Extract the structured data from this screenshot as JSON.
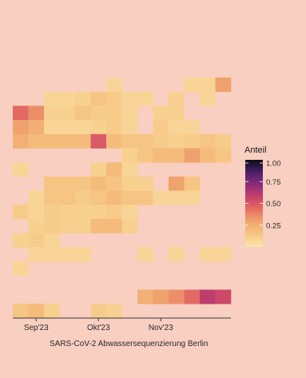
{
  "chart_data": {
    "type": "heatmap",
    "title": "",
    "xlabel": "SARS-CoV-2 Abwassersequenzierung Berlin",
    "ylabel": "",
    "x_ticks": [
      "Sep'23",
      "Okt'23",
      "Nov'23"
    ],
    "x_tick_week_index": [
      1,
      5,
      9
    ],
    "weeks": 14,
    "rows": 17,
    "legend": {
      "title": "Anteil",
      "ticks": [
        "1.00",
        "0.75",
        "0.50",
        "0.25"
      ],
      "tick_values": [
        1.0,
        0.75,
        0.5,
        0.25
      ],
      "range": [
        0,
        1
      ],
      "position": "right"
    },
    "colors": {
      "background": "#f8cfc0",
      "colorscale": [
        "#fbe6ad",
        "#f6c784",
        "#f0a86e",
        "#e87062",
        "#c9416b",
        "#8e2b7a",
        "#4a1f6b",
        "#0b0b18"
      ]
    },
    "cells": [
      [
        [
          6,
          0.08
        ],
        [
          11,
          0.08
        ],
        [
          12,
          0.08
        ],
        [
          13,
          0.3
        ]
      ],
      [
        [
          2,
          0.08
        ],
        [
          3,
          0.08
        ],
        [
          4,
          0.1
        ],
        [
          5,
          0.15
        ],
        [
          6,
          0.12
        ],
        [
          7,
          0.08
        ],
        [
          8,
          0.08
        ],
        [
          10,
          0.1
        ],
        [
          12,
          0.08
        ]
      ],
      [
        [
          0,
          0.45
        ],
        [
          1,
          0.35
        ],
        [
          2,
          0.1
        ],
        [
          3,
          0.1
        ],
        [
          4,
          0.15
        ],
        [
          5,
          0.12
        ],
        [
          6,
          0.12
        ],
        [
          7,
          0.08
        ],
        [
          9,
          0.1
        ],
        [
          10,
          0.1
        ]
      ],
      [
        [
          0,
          0.3
        ],
        [
          1,
          0.25
        ],
        [
          2,
          0.08
        ],
        [
          3,
          0.08
        ],
        [
          4,
          0.08
        ],
        [
          5,
          0.1
        ],
        [
          6,
          0.12
        ],
        [
          7,
          0.08
        ],
        [
          9,
          0.12
        ],
        [
          10,
          0.08
        ],
        [
          11,
          0.08
        ]
      ],
      [
        [
          0,
          0.25
        ],
        [
          1,
          0.2
        ],
        [
          2,
          0.2
        ],
        [
          3,
          0.2
        ],
        [
          4,
          0.2
        ],
        [
          5,
          0.5
        ],
        [
          6,
          0.2
        ],
        [
          7,
          0.15
        ],
        [
          8,
          0.15
        ],
        [
          9,
          0.12
        ],
        [
          10,
          0.1
        ],
        [
          11,
          0.12
        ],
        [
          12,
          0.15
        ],
        [
          13,
          0.12
        ]
      ],
      [
        [
          7,
          0.1
        ],
        [
          8,
          0.15
        ],
        [
          9,
          0.2
        ],
        [
          10,
          0.2
        ],
        [
          11,
          0.3
        ],
        [
          12,
          0.2
        ],
        [
          13,
          0.15
        ]
      ],
      [
        [
          0,
          0.08
        ],
        [
          5,
          0.1
        ],
        [
          6,
          0.2
        ],
        [
          7,
          0.08
        ]
      ],
      [
        [
          2,
          0.15
        ],
        [
          3,
          0.15
        ],
        [
          4,
          0.15
        ],
        [
          5,
          0.2
        ],
        [
          6,
          0.15
        ],
        [
          7,
          0.1
        ],
        [
          8,
          0.1
        ],
        [
          10,
          0.3
        ],
        [
          11,
          0.15
        ]
      ],
      [
        [
          1,
          0.08
        ],
        [
          2,
          0.15
        ],
        [
          3,
          0.15
        ],
        [
          4,
          0.12
        ],
        [
          5,
          0.15
        ],
        [
          6,
          0.2
        ],
        [
          7,
          0.15
        ],
        [
          8,
          0.15
        ],
        [
          9,
          0.08
        ],
        [
          10,
          0.08
        ],
        [
          11,
          0.08
        ]
      ],
      [
        [
          0,
          0.12
        ],
        [
          1,
          0.08
        ],
        [
          2,
          0.12
        ],
        [
          3,
          0.1
        ],
        [
          4,
          0.1
        ],
        [
          5,
          0.1
        ],
        [
          6,
          0.12
        ],
        [
          7,
          0.08
        ]
      ],
      [
        [
          1,
          0.1
        ],
        [
          2,
          0.12
        ],
        [
          3,
          0.1
        ],
        [
          4,
          0.1
        ],
        [
          5,
          0.2
        ],
        [
          6,
          0.2
        ],
        [
          7,
          0.1
        ]
      ],
      [
        [
          0,
          0.1
        ],
        [
          1,
          0.12
        ],
        [
          2,
          0.08
        ]
      ],
      [
        [
          1,
          0.08
        ],
        [
          2,
          0.08
        ],
        [
          3,
          0.08
        ],
        [
          4,
          0.08
        ],
        [
          8,
          0.08
        ],
        [
          10,
          0.08
        ],
        [
          12,
          0.08
        ],
        [
          13,
          0.08
        ]
      ],
      [
        [
          0,
          0.08
        ]
      ],
      [],
      [
        [
          8,
          0.25
        ],
        [
          9,
          0.3
        ],
        [
          10,
          0.35
        ],
        [
          11,
          0.45
        ],
        [
          12,
          0.6
        ],
        [
          13,
          0.55
        ]
      ],
      [
        [
          0,
          0.15
        ],
        [
          1,
          0.2
        ],
        [
          2,
          0.1
        ],
        [
          5,
          0.12
        ],
        [
          6,
          0.1
        ]
      ]
    ]
  }
}
